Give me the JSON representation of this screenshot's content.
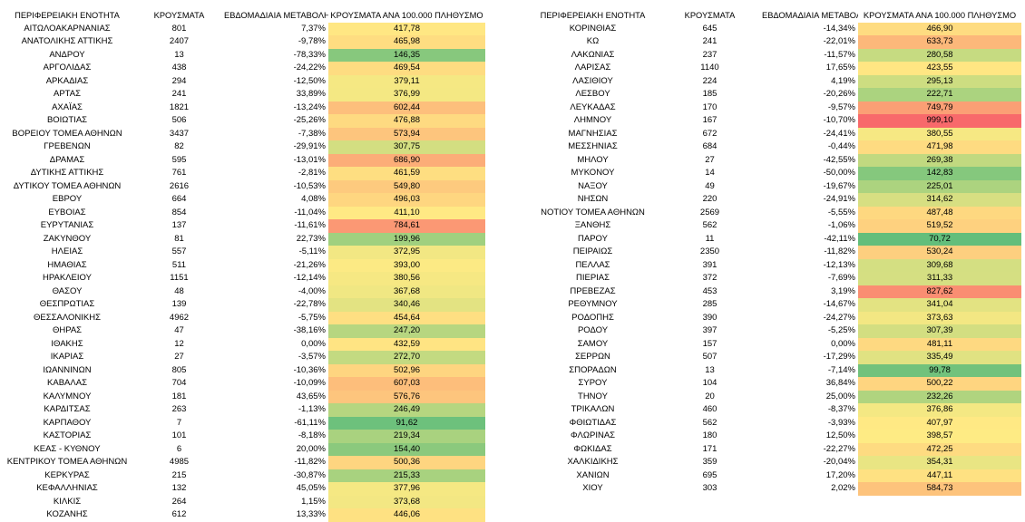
{
  "headers": {
    "region": "ΠΕΡΙΦΕΡΕΙΑΚΗ ΕΝΟΤΗΤΑ",
    "cases": "ΚΡΟΥΣΜΑΤΑ",
    "weekly_change": "ΕΒΔΟΜΑΔΙΑΙΑ ΜΕΤΑΒΟΛΗ",
    "per_100k": "ΚΡΟΥΣΜΑΤΑ ΑΝΑ 100.000 ΠΛΗΘΥΣΜΟ"
  },
  "left_rows": [
    [
      "ΑΙΤΩΛΟΑΚΑΡΝΑΝΙΑΣ",
      "801",
      "7,37%",
      "417,78"
    ],
    [
      "ΑΝΑΤΟΛΙΚΗΣ ΑΤΤΙΚΗΣ",
      "2407",
      "-9,78%",
      "465,98"
    ],
    [
      "ΑΝΔΡΟΥ",
      "13",
      "-78,33%",
      "146,35"
    ],
    [
      "ΑΡΓΟΛΙΔΑΣ",
      "438",
      "-24,22%",
      "469,54"
    ],
    [
      "ΑΡΚΑΔΙΑΣ",
      "294",
      "-12,50%",
      "379,11"
    ],
    [
      "ΑΡΤΑΣ",
      "241",
      "33,89%",
      "376,99"
    ],
    [
      "ΑΧΑΪΑΣ",
      "1821",
      "-13,24%",
      "602,44"
    ],
    [
      "ΒΟΙΩΤΙΑΣ",
      "506",
      "-25,26%",
      "476,88"
    ],
    [
      "ΒΟΡΕΙΟΥ ΤΟΜΕΑ ΑΘΗΝΩΝ",
      "3437",
      "-7,38%",
      "573,94"
    ],
    [
      "ΓΡΕΒΕΝΩΝ",
      "82",
      "-29,91%",
      "307,75"
    ],
    [
      "ΔΡΑΜΑΣ",
      "595",
      "-13,01%",
      "686,90"
    ],
    [
      "ΔΥΤΙΚΗΣ ΑΤΤΙΚΗΣ",
      "761",
      "-2,81%",
      "461,59"
    ],
    [
      "ΔΥΤΙΚΟΥ ΤΟΜΕΑ ΑΘΗΝΩΝ",
      "2616",
      "-10,53%",
      "549,80"
    ],
    [
      "ΕΒΡΟΥ",
      "664",
      "4,08%",
      "496,03"
    ],
    [
      "ΕΥΒΟΙΑΣ",
      "854",
      "-11,04%",
      "411,10"
    ],
    [
      "ΕΥΡΥΤΑΝΙΑΣ",
      "137",
      "-11,61%",
      "784,61"
    ],
    [
      "ΖΑΚΥΝΘΟΥ",
      "81",
      "22,73%",
      "199,96"
    ],
    [
      "ΗΛΕΙΑΣ",
      "557",
      "-5,11%",
      "372,95"
    ],
    [
      "ΗΜΑΘΙΑΣ",
      "511",
      "-21,26%",
      "393,00"
    ],
    [
      "ΗΡΑΚΛΕΙΟΥ",
      "1151",
      "-12,14%",
      "380,56"
    ],
    [
      "ΘΑΣΟΥ",
      "48",
      "-4,00%",
      "367,68"
    ],
    [
      "ΘΕΣΠΡΩΤΙΑΣ",
      "139",
      "-22,78%",
      "340,46"
    ],
    [
      "ΘΕΣΣΑΛΟΝΙΚΗΣ",
      "4962",
      "-5,75%",
      "454,64"
    ],
    [
      "ΘΗΡΑΣ",
      "47",
      "-38,16%",
      "247,20"
    ],
    [
      "ΙΘΑΚΗΣ",
      "12",
      "0,00%",
      "432,59"
    ],
    [
      "ΙΚΑΡΙΑΣ",
      "27",
      "-3,57%",
      "272,70"
    ],
    [
      "ΙΩΑΝΝΙΝΩΝ",
      "805",
      "-10,36%",
      "502,96"
    ],
    [
      "ΚΑΒΑΛΑΣ",
      "704",
      "-10,09%",
      "607,03"
    ],
    [
      "ΚΑΛΥΜΝΟΥ",
      "181",
      "43,65%",
      "576,76"
    ],
    [
      "ΚΑΡΔΙΤΣΑΣ",
      "263",
      "-1,13%",
      "246,49"
    ],
    [
      "ΚΑΡΠΑΘΟΥ",
      "7",
      "-61,11%",
      "91,62"
    ],
    [
      "ΚΑΣΤΟΡΙΑΣ",
      "101",
      "-8,18%",
      "219,34"
    ],
    [
      "ΚΕΑΣ - ΚΥΘΝΟΥ",
      "6",
      "20,00%",
      "154,40"
    ],
    [
      "ΚΕΝΤΡΙΚΟΥ ΤΟΜΕΑ ΑΘΗΝΩΝ",
      "4985",
      "-11,82%",
      "500,36"
    ],
    [
      "ΚΕΡΚΥΡΑΣ",
      "215",
      "-30,87%",
      "215,33"
    ],
    [
      "ΚΕΦΑΛΛΗΝΙΑΣ",
      "132",
      "45,05%",
      "377,96"
    ],
    [
      "ΚΙΛΚΙΣ",
      "264",
      "1,15%",
      "373,68"
    ],
    [
      "ΚΟΖΑΝΗΣ",
      "612",
      "13,33%",
      "446,06"
    ]
  ],
  "right_rows": [
    [
      "ΚΟΡΙΝΘΙΑΣ",
      "645",
      "-14,34%",
      "466,90"
    ],
    [
      "ΚΩ",
      "241",
      "-22,01%",
      "633,73"
    ],
    [
      "ΛΑΚΩΝΙΑΣ",
      "237",
      "-11,57%",
      "280,58"
    ],
    [
      "ΛΑΡΙΣΑΣ",
      "1140",
      "17,65%",
      "423,55"
    ],
    [
      "ΛΑΣΙΘΙΟΥ",
      "224",
      "4,19%",
      "295,13"
    ],
    [
      "ΛΕΣΒΟΥ",
      "185",
      "-20,26%",
      "222,71"
    ],
    [
      "ΛΕΥΚΑΔΑΣ",
      "170",
      "-9,57%",
      "749,79"
    ],
    [
      "ΛΗΜΝΟΥ",
      "167",
      "-10,70%",
      "999,10"
    ],
    [
      "ΜΑΓΝΗΣΙΑΣ",
      "672",
      "-24,41%",
      "380,55"
    ],
    [
      "ΜΕΣΣΗΝΙΑΣ",
      "684",
      "-0,44%",
      "471,98"
    ],
    [
      "ΜΗΛΟΥ",
      "27",
      "-42,55%",
      "269,38"
    ],
    [
      "ΜΥΚΟΝΟΥ",
      "14",
      "-50,00%",
      "142,83"
    ],
    [
      "ΝΑΞΟΥ",
      "49",
      "-19,67%",
      "225,01"
    ],
    [
      "ΝΗΣΩΝ",
      "220",
      "-24,91%",
      "314,62"
    ],
    [
      "ΝΟΤΙΟΥ ΤΟΜΕΑ ΑΘΗΝΩΝ",
      "2569",
      "-5,55%",
      "487,48"
    ],
    [
      "ΞΑΝΘΗΣ",
      "562",
      "-1,06%",
      "519,52"
    ],
    [
      "ΠΑΡΟΥ",
      "11",
      "-42,11%",
      "70,72"
    ],
    [
      "ΠΕΙΡΑΙΩΣ",
      "2350",
      "-11,82%",
      "530,24"
    ],
    [
      "ΠΕΛΛΑΣ",
      "391",
      "-12,13%",
      "309,68"
    ],
    [
      "ΠΙΕΡΙΑΣ",
      "372",
      "-7,69%",
      "311,33"
    ],
    [
      "ΠΡΕΒΕΖΑΣ",
      "453",
      "3,19%",
      "827,62"
    ],
    [
      "ΡΕΘΥΜΝΟΥ",
      "285",
      "-14,67%",
      "341,04"
    ],
    [
      "ΡΟΔΟΠΗΣ",
      "390",
      "-24,27%",
      "373,63"
    ],
    [
      "ΡΟΔΟΥ",
      "397",
      "-5,25%",
      "307,39"
    ],
    [
      "ΣΑΜΟΥ",
      "157",
      "0,00%",
      "481,11"
    ],
    [
      "ΣΕΡΡΩΝ",
      "507",
      "-17,29%",
      "335,49"
    ],
    [
      "ΣΠΟΡΑΔΩΝ",
      "13",
      "-7,14%",
      "99,78"
    ],
    [
      "ΣΥΡΟΥ",
      "104",
      "36,84%",
      "500,22"
    ],
    [
      "ΤΗΝΟΥ",
      "20",
      "25,00%",
      "232,26"
    ],
    [
      "ΤΡΙΚΑΛΩΝ",
      "460",
      "-8,37%",
      "376,86"
    ],
    [
      "ΦΘΙΩΤΙΔΑΣ",
      "562",
      "-3,93%",
      "407,97"
    ],
    [
      "ΦΛΩΡΙΝΑΣ",
      "180",
      "12,50%",
      "398,57"
    ],
    [
      "ΦΩΚΙΔΑΣ",
      "171",
      "-22,27%",
      "472,25"
    ],
    [
      "ΧΑΛΚΙΔΙΚΗΣ",
      "359",
      "-20,04%",
      "354,31"
    ],
    [
      "ΧΑΝΙΩΝ",
      "695",
      "17,20%",
      "447,11"
    ],
    [
      "ΧΙΟΥ",
      "303",
      "2,02%",
      "584,73"
    ]
  ],
  "heatmap_colors": {
    "low": "#63be7b",
    "mid": "#ffeb84",
    "high": "#f8696b",
    "min_value": 70.72,
    "mid_value": 400,
    "max_value": 999.1
  }
}
